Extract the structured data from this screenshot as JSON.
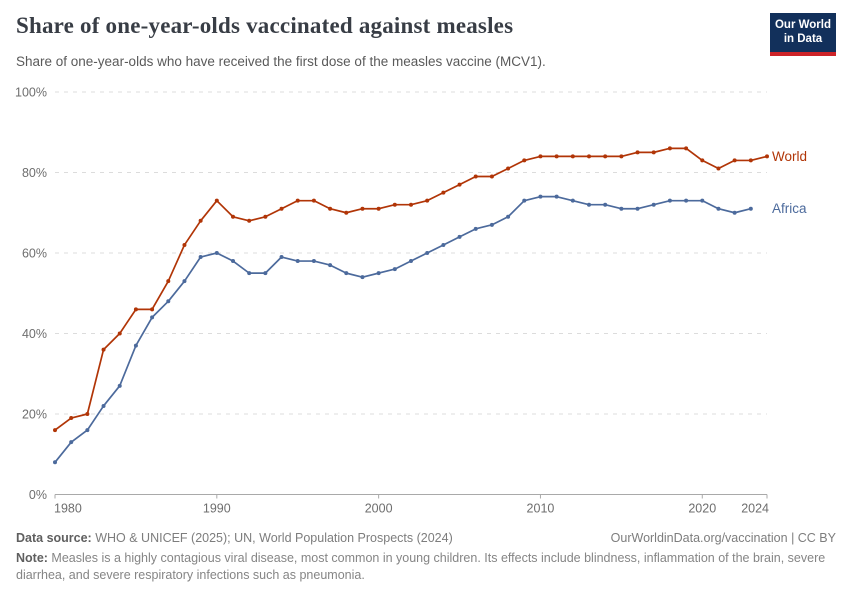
{
  "header": {
    "title": "Share of one-year-olds vaccinated against measles",
    "subtitle": "Share of one-year-olds who have received the first dose of the measles vaccine (MCV1).",
    "logo": {
      "line1": "Our World",
      "line2": "in Data"
    }
  },
  "chart_data": {
    "type": "line",
    "title": "Share of one-year-olds vaccinated against measles",
    "xlabel": "",
    "ylabel": "",
    "xlim": [
      1980,
      2024
    ],
    "ylim": [
      0,
      100
    ],
    "x_ticks": [
      1980,
      1990,
      2000,
      2010,
      2020,
      2024
    ],
    "y_ticks": [
      0,
      20,
      40,
      60,
      80,
      100
    ],
    "y_tick_suffix": "%",
    "grid": "horizontal-dashed",
    "legend_position": "right-of-line-end",
    "series": [
      {
        "name": "World",
        "color": "#b13507",
        "start_year": 1980,
        "values": [
          16,
          19,
          20,
          36,
          40,
          46,
          46,
          53,
          62,
          68,
          73,
          69,
          68,
          69,
          71,
          73,
          73,
          71,
          70,
          71,
          71,
          72,
          72,
          73,
          75,
          77,
          79,
          79,
          81,
          83,
          84,
          84,
          84,
          84,
          84,
          84,
          85,
          85,
          86,
          86,
          83,
          81,
          83,
          83,
          84
        ]
      },
      {
        "name": "Africa",
        "color": "#4c6a9c",
        "start_year": 1980,
        "values": [
          8,
          13,
          16,
          22,
          27,
          37,
          44,
          48,
          53,
          59,
          60,
          58,
          55,
          55,
          59,
          58,
          58,
          57,
          55,
          54,
          55,
          56,
          58,
          60,
          62,
          64,
          66,
          67,
          69,
          73,
          74,
          74,
          73,
          72,
          72,
          71,
          71,
          72,
          73,
          73,
          73,
          71,
          70,
          71
        ]
      }
    ]
  },
  "colors": {
    "axis": "#a9a9a9",
    "grid": "#dcdcdc",
    "tick_text": "#6e6e6e",
    "world": "#b13507",
    "africa": "#4c6a9c",
    "logo_bg": "#12305b",
    "logo_stripe": "#cd2328"
  },
  "footer": {
    "data_source_label": "Data source:",
    "data_source_text": " WHO & UNICEF (2025); UN, World Population Prospects (2024)",
    "link_text": "OurWorldinData.org/vaccination | CC BY",
    "note_label": "Note:",
    "note_text": " Measles is a highly contagious viral disease, most common in young children. Its effects include blindness, inflammation of the brain, severe diarrhea, and severe respiratory infections such as pneumonia."
  }
}
